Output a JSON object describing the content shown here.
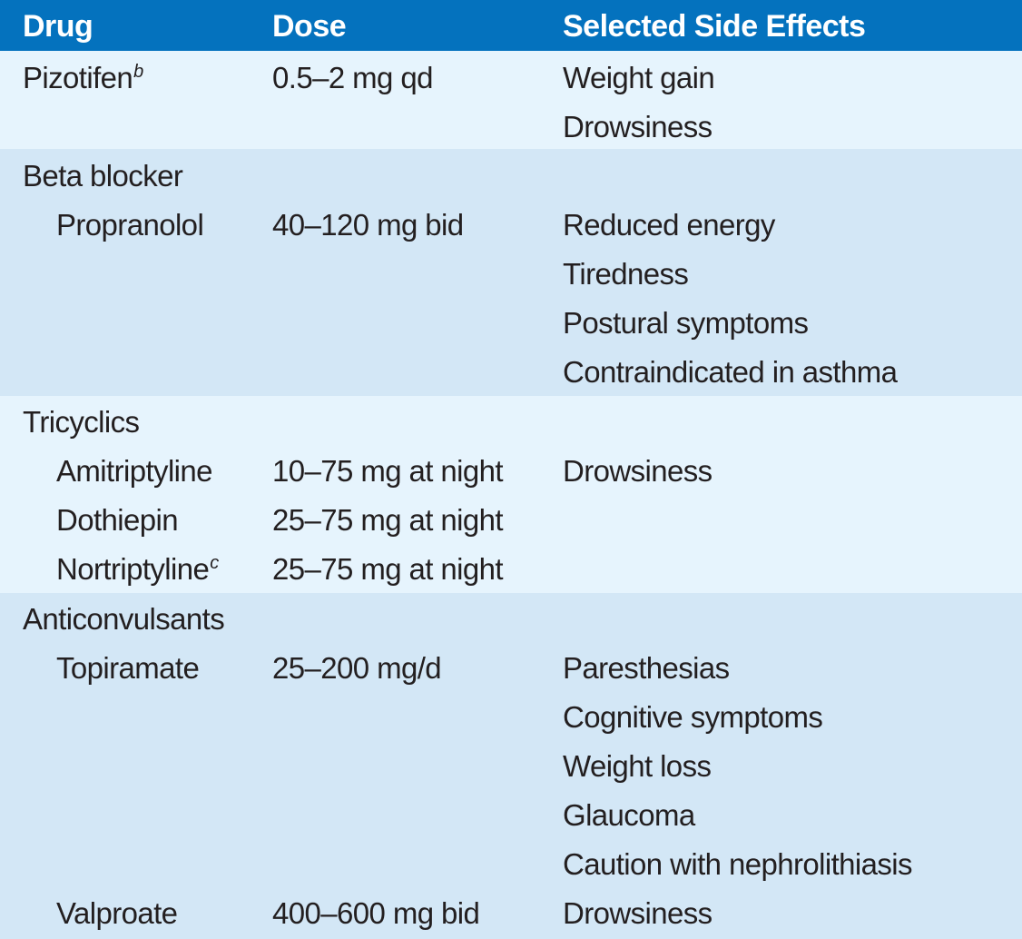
{
  "header": {
    "drug": "Drug",
    "dose": "Dose",
    "effects": "Selected Side Effects"
  },
  "colors": {
    "header_bg": "#0472be",
    "band_light": "#e6f4fd",
    "band_mid": "#d3e7f6"
  },
  "groups": [
    {
      "rows": [
        {
          "drug": "Pizotifen",
          "sup": "b",
          "dose": "0.5–2 mg qd",
          "effect": "Weight gain"
        },
        {
          "drug": "",
          "dose": "",
          "effect": "Drowsiness"
        }
      ]
    },
    {
      "rows": [
        {
          "drug": "Beta blocker",
          "dose": "",
          "effect": ""
        },
        {
          "drug": "Propranolol",
          "dose": "40–120 mg bid",
          "effect": "Reduced energy"
        },
        {
          "drug": "",
          "dose": "",
          "effect": "Tiredness"
        },
        {
          "drug": "",
          "dose": "",
          "effect": "Postural symptoms"
        },
        {
          "drug": "",
          "dose": "",
          "effect": "Contraindicated in asthma"
        }
      ]
    },
    {
      "rows": [
        {
          "drug": "Tricyclics",
          "dose": "",
          "effect": ""
        },
        {
          "drug": "Amitriptyline",
          "dose": "10–75 mg at night",
          "effect": "Drowsiness"
        },
        {
          "drug": "Dothiepin",
          "dose": "25–75 mg at night",
          "effect": ""
        },
        {
          "drug": "Nortriptyline",
          "sup": "c",
          "dose": "25–75 mg at night",
          "effect": ""
        }
      ]
    },
    {
      "rows": [
        {
          "drug": "Anticonvulsants",
          "dose": "",
          "effect": ""
        },
        {
          "drug": "Topiramate",
          "dose": "25–200 mg/d",
          "effect": "Paresthesias"
        },
        {
          "drug": "",
          "dose": "",
          "effect": "Cognitive symptoms"
        },
        {
          "drug": "",
          "dose": "",
          "effect": "Weight loss"
        },
        {
          "drug": "",
          "dose": "",
          "effect": "Glaucoma"
        },
        {
          "drug": "",
          "dose": "",
          "effect": "Caution with nephrolithiasis"
        },
        {
          "drug": "Valproate",
          "dose": "400–600 mg bid",
          "effect": "Drowsiness"
        }
      ]
    }
  ]
}
